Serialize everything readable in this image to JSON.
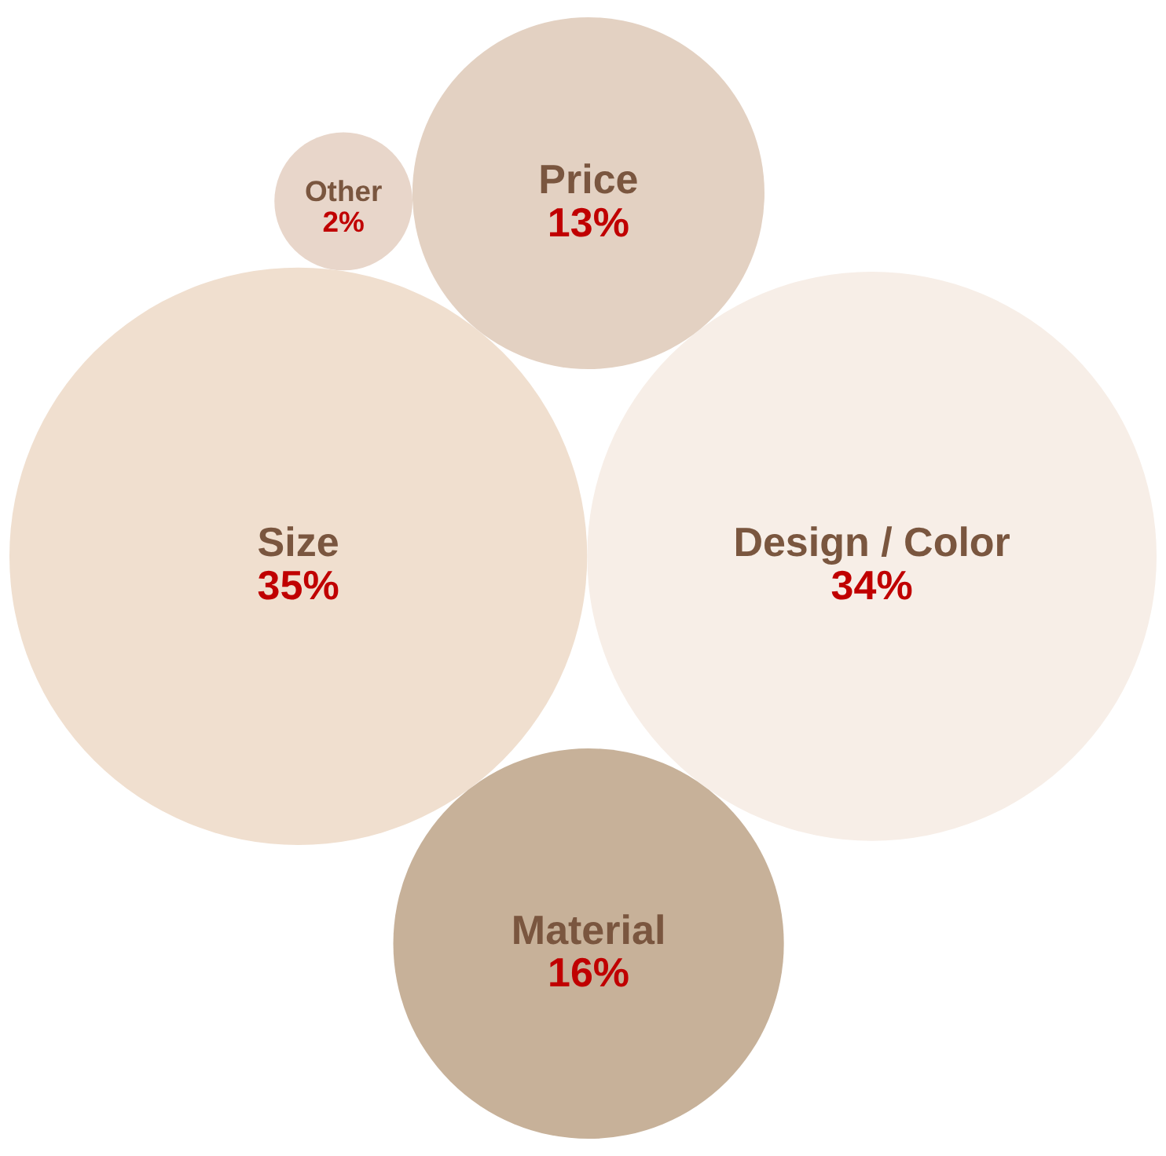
{
  "chart_data": {
    "type": "other",
    "categories": [
      "Size",
      "Design / Color",
      "Material",
      "Price",
      "Other"
    ],
    "values": [
      35,
      34,
      16,
      13,
      2
    ],
    "value_labels": [
      "35%",
      "34%",
      "16%",
      "13%",
      "2%"
    ],
    "colors": [
      "#f0dfcf",
      "#f7eee7",
      "#c7b199",
      "#e3d1c2",
      "#e8d6ca"
    ]
  }
}
